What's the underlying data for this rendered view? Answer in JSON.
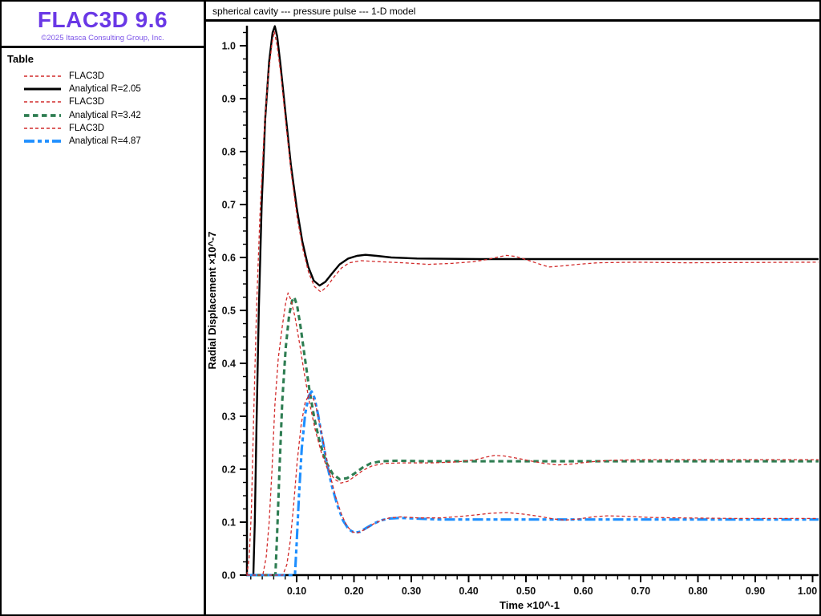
{
  "app": {
    "logo_title": "FLAC3D 9.6",
    "copyright": "©2025 Itasca Consulting Group, Inc.",
    "logo_color": "#6a38e6",
    "copyright_color": "#7d55e8"
  },
  "legend": {
    "header": "Table"
  },
  "chart_data": {
    "type": "line",
    "title": "spherical cavity --- pressure pulse --- 1-D model",
    "xlabel": "Time ×10^-1",
    "ylabel": "Radial Displacement ×10^-7",
    "xlim": [
      0.013,
      1.0
    ],
    "ylim": [
      0.0,
      1.04
    ],
    "grid": false,
    "legend_position": "left-panel",
    "x_major_ticks": [
      0.1,
      0.2,
      0.3,
      0.4,
      0.5,
      0.6,
      0.7,
      0.8,
      0.9,
      1.0
    ],
    "x_tick_labels": [
      "0.10",
      "0.20",
      "0.30",
      "0.40",
      "0.50",
      "0.60",
      "0.70",
      "0.80",
      "0.90",
      "1.00"
    ],
    "x_minor_step": 0.02,
    "y_major_ticks": [
      0.0,
      0.1,
      0.2,
      0.3,
      0.4,
      0.5,
      0.6,
      0.7,
      0.8,
      0.9,
      1.0
    ],
    "y_tick_labels": [
      "0.0",
      "0.1",
      "0.2",
      "0.3",
      "0.4",
      "0.5",
      "0.6",
      "0.7",
      "0.8",
      "0.9",
      "1.0"
    ],
    "y_minor_step": 0.025,
    "series": [
      {
        "name": "FLAC3D",
        "color": "#d22b2b",
        "style": "dashed-thin",
        "points": [
          [
            0.013,
            0
          ],
          [
            0.017,
            0.03
          ],
          [
            0.021,
            0.12
          ],
          [
            0.025,
            0.3
          ],
          [
            0.03,
            0.5
          ],
          [
            0.036,
            0.68
          ],
          [
            0.043,
            0.83
          ],
          [
            0.05,
            0.94
          ],
          [
            0.057,
            1.005
          ],
          [
            0.061,
            1.027
          ],
          [
            0.066,
            1.0
          ],
          [
            0.073,
            0.94
          ],
          [
            0.081,
            0.855
          ],
          [
            0.091,
            0.755
          ],
          [
            0.101,
            0.675
          ],
          [
            0.111,
            0.615
          ],
          [
            0.121,
            0.571
          ],
          [
            0.131,
            0.545
          ],
          [
            0.142,
            0.535
          ],
          [
            0.153,
            0.545
          ],
          [
            0.165,
            0.563
          ],
          [
            0.178,
            0.58
          ],
          [
            0.192,
            0.59
          ],
          [
            0.212,
            0.594
          ],
          [
            0.245,
            0.592
          ],
          [
            0.285,
            0.59
          ],
          [
            0.33,
            0.587
          ],
          [
            0.372,
            0.589
          ],
          [
            0.408,
            0.592
          ],
          [
            0.432,
            0.596
          ],
          [
            0.452,
            0.601
          ],
          [
            0.466,
            0.604
          ],
          [
            0.482,
            0.602
          ],
          [
            0.503,
            0.595
          ],
          [
            0.522,
            0.588
          ],
          [
            0.54,
            0.582
          ],
          [
            0.562,
            0.584
          ],
          [
            0.59,
            0.587
          ],
          [
            0.625,
            0.59
          ],
          [
            0.69,
            0.591
          ],
          [
            0.78,
            0.59
          ],
          [
            1.0,
            0.591
          ]
        ]
      },
      {
        "name": "Analytical R=2.05",
        "color": "#000000",
        "style": "solid-thick",
        "points": [
          [
            0.013,
            0
          ],
          [
            0.0245,
            0
          ],
          [
            0.027,
            0.1
          ],
          [
            0.03,
            0.28
          ],
          [
            0.034,
            0.5
          ],
          [
            0.039,
            0.7
          ],
          [
            0.045,
            0.86
          ],
          [
            0.052,
            0.97
          ],
          [
            0.058,
            1.025
          ],
          [
            0.062,
            1.037
          ],
          [
            0.066,
            1.018
          ],
          [
            0.072,
            0.962
          ],
          [
            0.08,
            0.878
          ],
          [
            0.09,
            0.775
          ],
          [
            0.1,
            0.695
          ],
          [
            0.11,
            0.63
          ],
          [
            0.12,
            0.583
          ],
          [
            0.13,
            0.556
          ],
          [
            0.14,
            0.547
          ],
          [
            0.15,
            0.554
          ],
          [
            0.162,
            0.57
          ],
          [
            0.175,
            0.587
          ],
          [
            0.19,
            0.598
          ],
          [
            0.205,
            0.603
          ],
          [
            0.22,
            0.605
          ],
          [
            0.24,
            0.603
          ],
          [
            0.265,
            0.6
          ],
          [
            0.31,
            0.598
          ],
          [
            0.42,
            0.597
          ],
          [
            1.0,
            0.597
          ]
        ]
      },
      {
        "name": "FLAC3D",
        "color": "#d22b2b",
        "style": "dashed-thin",
        "points": [
          [
            0.013,
            0
          ],
          [
            0.041,
            0
          ],
          [
            0.047,
            0.035
          ],
          [
            0.052,
            0.1
          ],
          [
            0.057,
            0.2
          ],
          [
            0.062,
            0.32
          ],
          [
            0.068,
            0.41
          ],
          [
            0.075,
            0.47
          ],
          [
            0.081,
            0.515
          ],
          [
            0.085,
            0.533
          ],
          [
            0.09,
            0.52
          ],
          [
            0.097,
            0.488
          ],
          [
            0.105,
            0.438
          ],
          [
            0.113,
            0.383
          ],
          [
            0.122,
            0.328
          ],
          [
            0.132,
            0.276
          ],
          [
            0.143,
            0.232
          ],
          [
            0.154,
            0.2
          ],
          [
            0.166,
            0.181
          ],
          [
            0.177,
            0.174
          ],
          [
            0.189,
            0.177
          ],
          [
            0.202,
            0.187
          ],
          [
            0.216,
            0.198
          ],
          [
            0.231,
            0.206
          ],
          [
            0.252,
            0.211
          ],
          [
            0.285,
            0.212
          ],
          [
            0.335,
            0.212
          ],
          [
            0.382,
            0.214
          ],
          [
            0.412,
            0.218
          ],
          [
            0.431,
            0.223
          ],
          [
            0.445,
            0.226
          ],
          [
            0.462,
            0.225
          ],
          [
            0.483,
            0.221
          ],
          [
            0.506,
            0.216
          ],
          [
            0.531,
            0.211
          ],
          [
            0.556,
            0.208
          ],
          [
            0.582,
            0.21
          ],
          [
            0.612,
            0.214
          ],
          [
            0.652,
            0.217
          ],
          [
            0.705,
            0.218
          ],
          [
            0.8,
            0.218
          ],
          [
            1.0,
            0.218
          ]
        ]
      },
      {
        "name": "Analytical R=3.42",
        "color": "#2e7d52",
        "style": "dashed-thick",
        "points": [
          [
            0.013,
            0
          ],
          [
            0.063,
            0
          ],
          [
            0.066,
            0.08
          ],
          [
            0.07,
            0.2
          ],
          [
            0.075,
            0.33
          ],
          [
            0.081,
            0.43
          ],
          [
            0.087,
            0.492
          ],
          [
            0.092,
            0.518
          ],
          [
            0.096,
            0.525
          ],
          [
            0.101,
            0.508
          ],
          [
            0.107,
            0.468
          ],
          [
            0.114,
            0.413
          ],
          [
            0.122,
            0.352
          ],
          [
            0.131,
            0.295
          ],
          [
            0.141,
            0.248
          ],
          [
            0.152,
            0.212
          ],
          [
            0.163,
            0.191
          ],
          [
            0.175,
            0.181
          ],
          [
            0.188,
            0.183
          ],
          [
            0.201,
            0.192
          ],
          [
            0.215,
            0.203
          ],
          [
            0.229,
            0.211
          ],
          [
            0.247,
            0.215
          ],
          [
            0.275,
            0.216
          ],
          [
            0.33,
            0.215
          ],
          [
            1.0,
            0.215
          ]
        ]
      },
      {
        "name": "FLAC3D",
        "color": "#d22b2b",
        "style": "dashed-thin",
        "points": [
          [
            0.013,
            0
          ],
          [
            0.076,
            0
          ],
          [
            0.083,
            0.02
          ],
          [
            0.089,
            0.065
          ],
          [
            0.095,
            0.135
          ],
          [
            0.101,
            0.215
          ],
          [
            0.108,
            0.285
          ],
          [
            0.115,
            0.327
          ],
          [
            0.122,
            0.341
          ],
          [
            0.128,
            0.337
          ],
          [
            0.134,
            0.317
          ],
          [
            0.141,
            0.282
          ],
          [
            0.149,
            0.237
          ],
          [
            0.158,
            0.19
          ],
          [
            0.168,
            0.148
          ],
          [
            0.178,
            0.115
          ],
          [
            0.188,
            0.092
          ],
          [
            0.198,
            0.081
          ],
          [
            0.208,
            0.08
          ],
          [
            0.22,
            0.087
          ],
          [
            0.233,
            0.096
          ],
          [
            0.247,
            0.103
          ],
          [
            0.262,
            0.108
          ],
          [
            0.282,
            0.11
          ],
          [
            0.312,
            0.108
          ],
          [
            0.352,
            0.108
          ],
          [
            0.388,
            0.111
          ],
          [
            0.415,
            0.114
          ],
          [
            0.44,
            0.117
          ],
          [
            0.468,
            0.118
          ],
          [
            0.497,
            0.115
          ],
          [
            0.523,
            0.111
          ],
          [
            0.548,
            0.106
          ],
          [
            0.568,
            0.104
          ],
          [
            0.592,
            0.106
          ],
          [
            0.617,
            0.11
          ],
          [
            0.642,
            0.112
          ],
          [
            0.675,
            0.111
          ],
          [
            0.715,
            0.109
          ],
          [
            0.77,
            0.108
          ],
          [
            0.87,
            0.107
          ],
          [
            1.0,
            0.107
          ]
        ]
      },
      {
        "name": "Analytical R=4.87",
        "color": "#1e8fff",
        "style": "dashdot-thick",
        "points": [
          [
            0.013,
            0
          ],
          [
            0.097,
            0
          ],
          [
            0.1,
            0.06
          ],
          [
            0.104,
            0.15
          ],
          [
            0.109,
            0.24
          ],
          [
            0.115,
            0.305
          ],
          [
            0.121,
            0.338
          ],
          [
            0.126,
            0.347
          ],
          [
            0.131,
            0.335
          ],
          [
            0.137,
            0.305
          ],
          [
            0.144,
            0.262
          ],
          [
            0.152,
            0.215
          ],
          [
            0.161,
            0.17
          ],
          [
            0.171,
            0.132
          ],
          [
            0.181,
            0.103
          ],
          [
            0.191,
            0.086
          ],
          [
            0.201,
            0.08
          ],
          [
            0.211,
            0.082
          ],
          [
            0.223,
            0.09
          ],
          [
            0.236,
            0.098
          ],
          [
            0.249,
            0.104
          ],
          [
            0.263,
            0.107
          ],
          [
            0.28,
            0.108
          ],
          [
            0.305,
            0.107
          ],
          [
            0.35,
            0.105
          ],
          [
            1.0,
            0.105
          ]
        ]
      }
    ]
  }
}
